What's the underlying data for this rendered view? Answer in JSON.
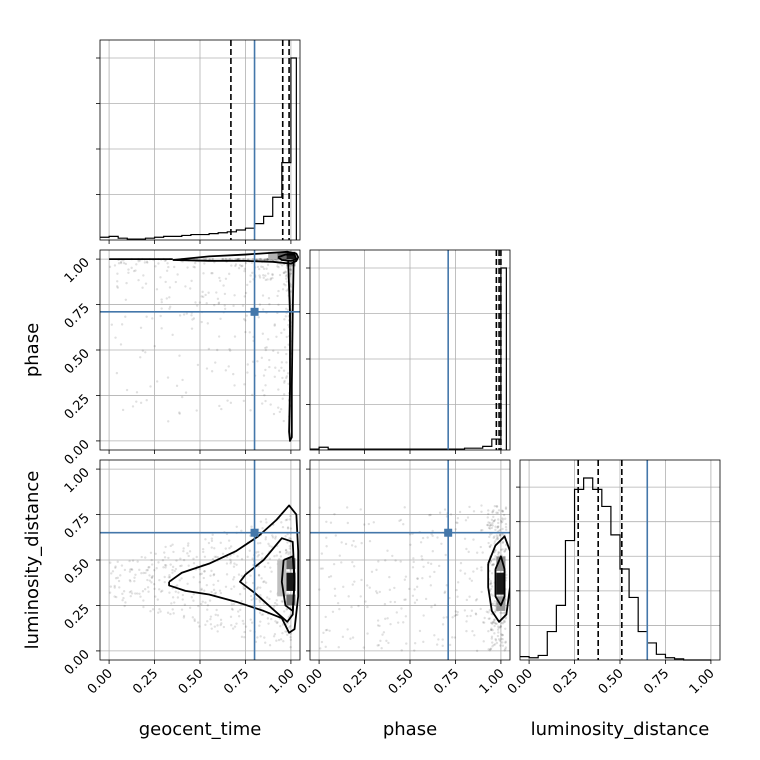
{
  "chart_data": {
    "type": "corner",
    "parameters": [
      "geocent_time",
      "phase",
      "luminosity_distance"
    ],
    "truths": [
      0.8,
      0.71,
      0.65
    ],
    "truth_color": "#4477aa",
    "tick_labels": [
      "0.00",
      "0.25",
      "0.50",
      "0.75",
      "1.00"
    ],
    "tick_values": [
      0,
      0.25,
      0.5,
      0.75,
      1.0
    ],
    "grid": true,
    "histograms": [
      {
        "parameter": "geocent_time",
        "xlim": [
          -0.05,
          1.05
        ],
        "bin_edges": [
          -0.05,
          0.0,
          0.05,
          0.1,
          0.15,
          0.2,
          0.25,
          0.3,
          0.35,
          0.4,
          0.45,
          0.5,
          0.55,
          0.6,
          0.65,
          0.7,
          0.75,
          0.8,
          0.85,
          0.9,
          0.95,
          1.0,
          1.03
        ],
        "counts": [
          3,
          4,
          2,
          1,
          1,
          2,
          3,
          4,
          4,
          5,
          6,
          6,
          7,
          8,
          9,
          11,
          13,
          18,
          26,
          47,
          85,
          200
        ],
        "quantiles": [
          0.67,
          0.955,
          0.99
        ]
      },
      {
        "parameter": "phase",
        "xlim": [
          -0.05,
          1.05
        ],
        "bin_edges": [
          -0.05,
          0.0,
          0.05,
          0.1,
          0.15,
          0.2,
          0.25,
          0.3,
          0.35,
          0.4,
          0.45,
          0.5,
          0.55,
          0.6,
          0.65,
          0.7,
          0.75,
          0.8,
          0.85,
          0.9,
          0.95,
          1.0,
          1.03
        ],
        "counts": [
          1,
          3,
          1,
          1,
          1,
          1,
          1,
          1,
          1,
          1,
          1,
          1,
          1,
          1,
          1,
          1,
          1,
          2,
          2,
          4,
          12,
          200
        ],
        "quantiles": [
          0.975,
          0.99,
          1.0
        ]
      },
      {
        "parameter": "luminosity_distance",
        "xlim": [
          -0.05,
          1.05
        ],
        "bin_edges": [
          -0.05,
          0.0,
          0.05,
          0.1,
          0.15,
          0.2,
          0.25,
          0.3,
          0.35,
          0.4,
          0.45,
          0.5,
          0.55,
          0.6,
          0.65,
          0.7,
          0.75,
          0.8,
          0.85,
          0.9,
          0.95,
          1.0
        ],
        "counts": [
          3,
          2,
          4,
          25,
          48,
          105,
          150,
          160,
          150,
          135,
          110,
          80,
          55,
          25,
          15,
          5,
          2,
          1,
          0,
          0,
          0
        ],
        "quantiles": [
          0.27,
          0.38,
          0.51
        ]
      }
    ],
    "panels_2d": [
      {
        "x": "geocent_time",
        "y": "phase",
        "contours": [
          [
            [
              0.35,
              0.995
            ],
            [
              0.55,
              1.015
            ],
            [
              0.75,
              1.025
            ],
            [
              0.9,
              1.035
            ],
            [
              0.98,
              1.04
            ],
            [
              1.03,
              1.03
            ],
            [
              1.04,
              1.01
            ],
            [
              1.03,
              0.99
            ],
            [
              1.0,
              0.975
            ],
            [
              0.9,
              0.985
            ],
            [
              0.75,
              0.99
            ],
            [
              0.55,
              0.99
            ],
            [
              0.35,
              0.995
            ]
          ],
          [
            [
              0.93,
              1.01
            ],
            [
              0.97,
              1.025
            ],
            [
              1.02,
              1.025
            ],
            [
              1.03,
              1.0
            ],
            [
              1.0,
              0.99
            ],
            [
              0.95,
              0.995
            ],
            [
              0.93,
              1.01
            ]
          ],
          [
            [
              0.985,
              0.99
            ],
            [
              0.995,
              0.7
            ],
            [
              0.995,
              0.3
            ],
            [
              0.99,
              0.05
            ],
            [
              0.995,
              0.0
            ],
            [
              1.005,
              0.02
            ],
            [
              1.005,
              0.3
            ],
            [
              1.01,
              0.7
            ],
            [
              1.015,
              0.99
            ]
          ],
          [
            [
              0.0,
              1.0
            ],
            [
              0.35,
              1.0
            ]
          ]
        ],
        "density_cells": [
          {
            "x": 1.0,
            "y": 1.02,
            "w": 0.05,
            "h": 0.04,
            "level": 0.9
          },
          {
            "x": 0.95,
            "y": 1.02,
            "w": 0.05,
            "h": 0.04,
            "level": 0.6
          },
          {
            "x": 0.9,
            "y": 1.02,
            "w": 0.05,
            "h": 0.04,
            "level": 0.3
          },
          {
            "x": 1.0,
            "y": 0.98,
            "w": 0.05,
            "h": 0.04,
            "level": 0.35
          }
        ]
      },
      {
        "x": "geocent_time",
        "y": "luminosity_distance",
        "contours": [
          [
            [
              0.33,
              0.38
            ],
            [
              0.4,
              0.43
            ],
            [
              0.55,
              0.48
            ],
            [
              0.7,
              0.55
            ],
            [
              0.82,
              0.63
            ],
            [
              0.92,
              0.72
            ],
            [
              0.99,
              0.8
            ],
            [
              1.03,
              0.75
            ],
            [
              1.04,
              0.55
            ],
            [
              1.04,
              0.3
            ],
            [
              1.02,
              0.12
            ],
            [
              0.99,
              0.1
            ],
            [
              0.95,
              0.18
            ],
            [
              0.85,
              0.22
            ],
            [
              0.7,
              0.27
            ],
            [
              0.55,
              0.31
            ],
            [
              0.42,
              0.33
            ],
            [
              0.33,
              0.36
            ],
            [
              0.33,
              0.38
            ]
          ],
          [
            [
              0.75,
              0.42
            ],
            [
              0.85,
              0.5
            ],
            [
              0.95,
              0.62
            ],
            [
              1.01,
              0.6
            ],
            [
              1.02,
              0.4
            ],
            [
              1.01,
              0.2
            ],
            [
              0.98,
              0.16
            ],
            [
              0.9,
              0.23
            ],
            [
              0.8,
              0.32
            ],
            [
              0.72,
              0.38
            ],
            [
              0.75,
              0.42
            ]
          ],
          [
            [
              0.96,
              0.5
            ],
            [
              1.01,
              0.52
            ],
            [
              1.02,
              0.38
            ],
            [
              1.01,
              0.22
            ],
            [
              0.97,
              0.25
            ],
            [
              0.95,
              0.38
            ],
            [
              0.96,
              0.5
            ]
          ]
        ],
        "density_cells": [
          {
            "x": 1.0,
            "y": 0.38,
            "w": 0.05,
            "h": 0.1,
            "level": 0.9
          },
          {
            "x": 1.0,
            "y": 0.48,
            "w": 0.05,
            "h": 0.06,
            "level": 0.6
          },
          {
            "x": 1.0,
            "y": 0.28,
            "w": 0.05,
            "h": 0.06,
            "level": 0.55
          },
          {
            "x": 0.95,
            "y": 0.4,
            "w": 0.05,
            "h": 0.2,
            "level": 0.25
          }
        ]
      },
      {
        "x": "phase",
        "y": "luminosity_distance",
        "contours": [
          [
            [
              0.93,
              0.48
            ],
            [
              0.97,
              0.58
            ],
            [
              1.02,
              0.63
            ],
            [
              1.05,
              0.55
            ],
            [
              1.05,
              0.35
            ],
            [
              1.03,
              0.2
            ],
            [
              0.99,
              0.16
            ],
            [
              0.95,
              0.22
            ],
            [
              0.93,
              0.35
            ],
            [
              0.93,
              0.48
            ]
          ],
          [
            [
              0.97,
              0.45
            ],
            [
              1.0,
              0.52
            ],
            [
              1.02,
              0.45
            ],
            [
              1.02,
              0.3
            ],
            [
              1.0,
              0.25
            ],
            [
              0.97,
              0.3
            ],
            [
              0.97,
              0.45
            ]
          ]
        ],
        "density_cells": [
          {
            "x": 1.0,
            "y": 0.37,
            "w": 0.05,
            "h": 0.12,
            "level": 0.9
          },
          {
            "x": 1.0,
            "y": 0.48,
            "w": 0.05,
            "h": 0.08,
            "level": 0.45
          },
          {
            "x": 1.0,
            "y": 0.26,
            "w": 0.05,
            "h": 0.08,
            "level": 0.4
          }
        ]
      }
    ]
  }
}
